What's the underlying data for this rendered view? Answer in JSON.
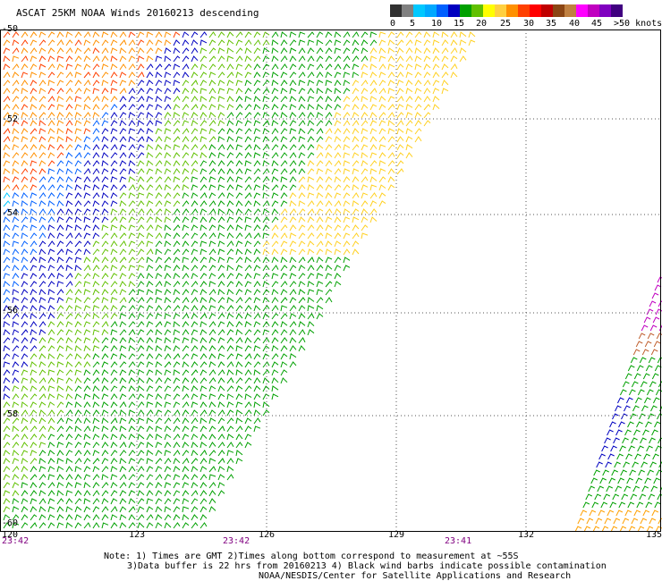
{
  "title": "ASCAT 25KM NOAA Winds 20160213 descending",
  "legend": {
    "colors": [
      "#303030",
      "#808080",
      "#00c8ff",
      "#00a8ff",
      "#0060ff",
      "#0000c0",
      "#00a000",
      "#60c000",
      "#ffff00",
      "#ffd040",
      "#ff9000",
      "#ff4000",
      "#ff0000",
      "#c00000",
      "#8b4513",
      "#c08040",
      "#ff00ff",
      "#c000c0",
      "#8000c0",
      "#400080"
    ],
    "labels": [
      "0",
      "5",
      "10",
      "15",
      "20",
      "25",
      "30",
      "35",
      "40",
      "45",
      ">50 knots"
    ]
  },
  "axes": {
    "lat_labels": [
      "-50",
      "-52",
      "-54",
      "-56",
      "-58",
      "-60"
    ],
    "lon_labels": [
      "120",
      "123",
      "126",
      "129",
      "132",
      "135"
    ],
    "time_labels": [
      "23:42",
      "23:42",
      "23:41"
    ]
  },
  "notes": [
    "Note: 1) Times are GMT 2)Times along bottom correspond to measurement at ~55S",
    "3)Data buffer is 22 hrs from 20160213 4) Black wind barbs indicate possible contamination",
    "NOAA/NESDIS/Center for Satellite Applications and Research"
  ]
}
